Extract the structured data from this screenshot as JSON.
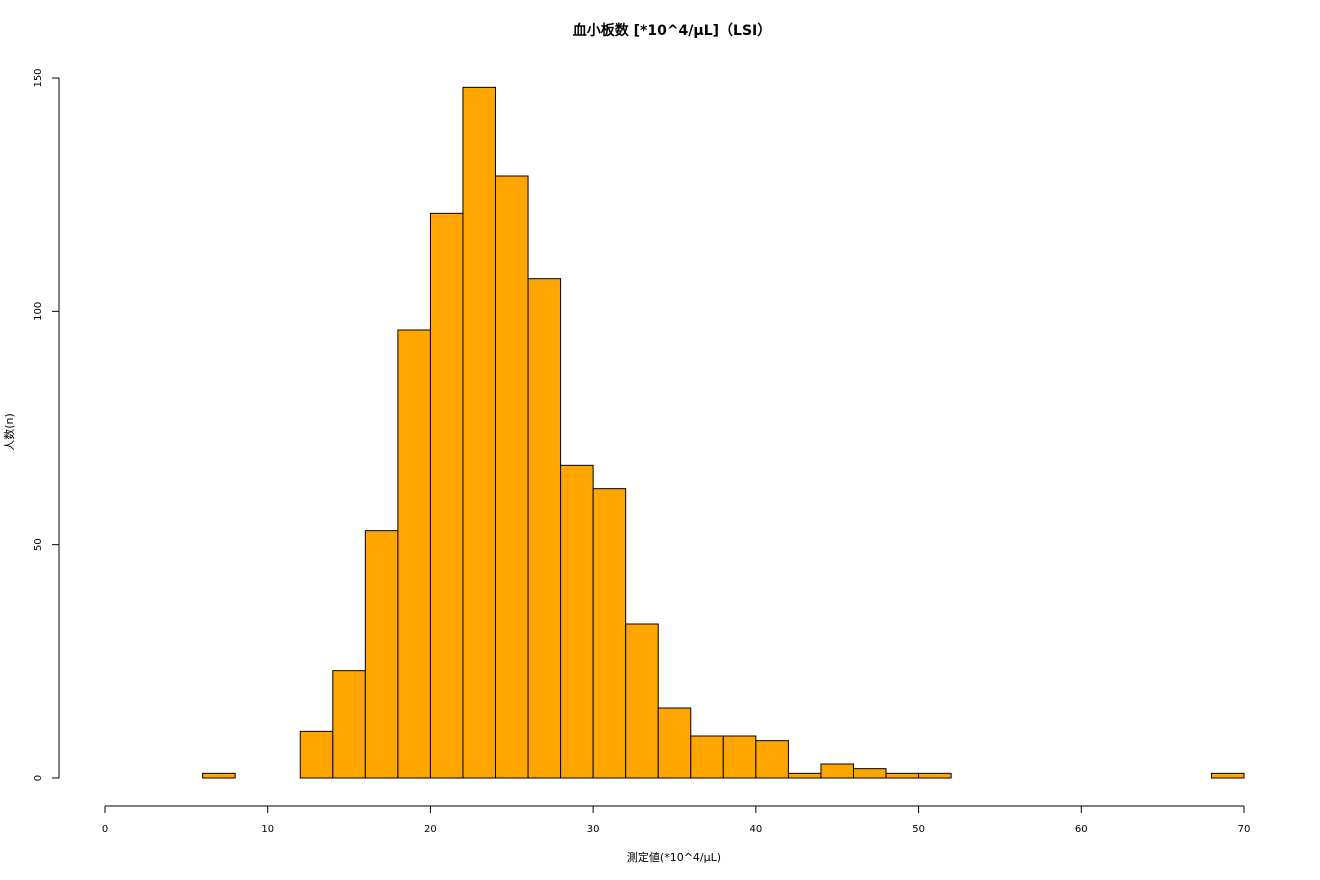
{
  "chart_data": {
    "type": "bar",
    "subtype": "histogram",
    "title": "血小板数 [*10^4/μL]（LSI）",
    "xlabel": "測定値(*10^4/μL)",
    "ylabel": "人数(n)",
    "xlim": [
      0,
      70
    ],
    "ylim": [
      0,
      150
    ],
    "x_ticks": [
      0,
      10,
      20,
      30,
      40,
      50,
      60,
      70
    ],
    "y_ticks": [
      0,
      50,
      100,
      150
    ],
    "bin_width": 2,
    "bins": [
      {
        "start": 6,
        "end": 8,
        "count": 1
      },
      {
        "start": 8,
        "end": 10,
        "count": 0
      },
      {
        "start": 10,
        "end": 12,
        "count": 0
      },
      {
        "start": 12,
        "end": 14,
        "count": 10
      },
      {
        "start": 14,
        "end": 16,
        "count": 23
      },
      {
        "start": 16,
        "end": 18,
        "count": 53
      },
      {
        "start": 18,
        "end": 20,
        "count": 96
      },
      {
        "start": 20,
        "end": 22,
        "count": 121
      },
      {
        "start": 22,
        "end": 24,
        "count": 148
      },
      {
        "start": 24,
        "end": 26,
        "count": 129
      },
      {
        "start": 26,
        "end": 28,
        "count": 107
      },
      {
        "start": 28,
        "end": 30,
        "count": 67
      },
      {
        "start": 30,
        "end": 32,
        "count": 62
      },
      {
        "start": 32,
        "end": 34,
        "count": 33
      },
      {
        "start": 34,
        "end": 36,
        "count": 15
      },
      {
        "start": 36,
        "end": 38,
        "count": 9
      },
      {
        "start": 38,
        "end": 40,
        "count": 9
      },
      {
        "start": 40,
        "end": 42,
        "count": 8
      },
      {
        "start": 42,
        "end": 44,
        "count": 1
      },
      {
        "start": 44,
        "end": 46,
        "count": 3
      },
      {
        "start": 46,
        "end": 48,
        "count": 2
      },
      {
        "start": 48,
        "end": 50,
        "count": 1
      },
      {
        "start": 50,
        "end": 52,
        "count": 1
      },
      {
        "start": 52,
        "end": 54,
        "count": 0
      },
      {
        "start": 54,
        "end": 56,
        "count": 0
      },
      {
        "start": 56,
        "end": 58,
        "count": 0
      },
      {
        "start": 58,
        "end": 60,
        "count": 0
      },
      {
        "start": 60,
        "end": 62,
        "count": 0
      },
      {
        "start": 62,
        "end": 64,
        "count": 0
      },
      {
        "start": 64,
        "end": 66,
        "count": 0
      },
      {
        "start": 66,
        "end": 68,
        "count": 0
      },
      {
        "start": 68,
        "end": 70,
        "count": 1
      }
    ],
    "bar_color": "#FFA500",
    "grid": false
  }
}
